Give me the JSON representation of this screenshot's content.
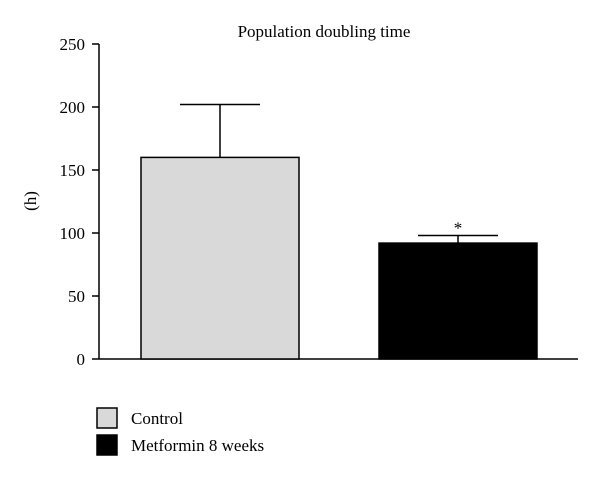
{
  "chart_data": {
    "type": "bar",
    "title": "Population doubling time",
    "ylabel": "(h)",
    "xlabel": "",
    "ylim": [
      0,
      250
    ],
    "yticks": [
      0,
      50,
      100,
      150,
      200,
      250
    ],
    "categories": [
      "Control",
      "Metformin 8 weeks"
    ],
    "values": [
      160,
      92
    ],
    "errors": [
      42,
      6
    ],
    "annotations": [
      "",
      "*"
    ],
    "colors": [
      "#d9d9d9",
      "#000000"
    ],
    "legend": {
      "placement": "bottom-left",
      "entries": [
        "Control",
        "Metformin 8 weeks"
      ]
    },
    "grid": false
  }
}
